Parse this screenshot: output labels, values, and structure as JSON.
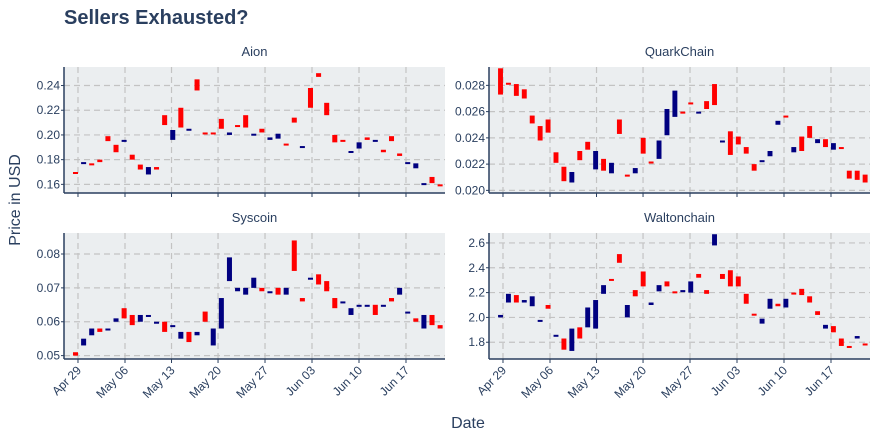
{
  "chart_data": {
    "type": "candlestick",
    "title": "Sellers Exhausted?",
    "xlabel": "Date",
    "ylabel": "Price in USD",
    "grid": true,
    "x_tick_labels": [
      "Apr 29",
      "May 06",
      "May 13",
      "May 20",
      "May 27",
      "Jun 03",
      "Jun 10",
      "Jun 17"
    ],
    "colors": {
      "increasing": "#000080",
      "decreasing": "#ff0000",
      "panel_bg": "#ebeef0",
      "grid": "#c3c3c3",
      "text": "#2a3f5f",
      "axis": "#2a3f5f"
    },
    "panels": [
      {
        "name": "Aion",
        "ylim": [
          0.153,
          0.255
        ],
        "yticks": [
          "0.16",
          "0.18",
          "0.20",
          "0.22",
          "0.24"
        ],
        "tick_values": [
          0.16,
          0.18,
          0.2,
          0.22,
          0.24
        ],
        "candles": [
          {
            "o": 0.17,
            "c": 0.169
          },
          {
            "o": 0.177,
            "c": 0.178
          },
          {
            "o": 0.177,
            "c": 0.176
          },
          {
            "o": 0.18,
            "c": 0.178
          },
          {
            "o": 0.199,
            "c": 0.195
          },
          {
            "o": 0.192,
            "c": 0.186
          },
          {
            "o": 0.195,
            "c": 0.196
          },
          {
            "o": 0.184,
            "c": 0.18
          },
          {
            "o": 0.176,
            "c": 0.172
          },
          {
            "o": 0.168,
            "c": 0.174
          },
          {
            "o": 0.174,
            "c": 0.172
          },
          {
            "o": 0.216,
            "c": 0.208
          },
          {
            "o": 0.196,
            "c": 0.204
          },
          {
            "o": 0.222,
            "c": 0.206
          },
          {
            "o": 0.204,
            "c": 0.205
          },
          {
            "o": 0.245,
            "c": 0.236
          },
          {
            "o": 0.202,
            "c": 0.201
          },
          {
            "o": 0.202,
            "c": 0.201
          },
          {
            "o": 0.213,
            "c": 0.205
          },
          {
            "o": 0.2,
            "c": 0.202
          },
          {
            "o": 0.208,
            "c": 0.207
          },
          {
            "o": 0.216,
            "c": 0.206
          },
          {
            "o": 0.2,
            "c": 0.201
          },
          {
            "o": 0.205,
            "c": 0.202
          },
          {
            "o": 0.196,
            "c": 0.198
          },
          {
            "o": 0.197,
            "c": 0.201
          },
          {
            "o": 0.193,
            "c": 0.192
          },
          {
            "o": 0.214,
            "c": 0.21
          },
          {
            "o": 0.19,
            "c": 0.191
          },
          {
            "o": 0.238,
            "c": 0.222
          },
          {
            "o": 0.25,
            "c": 0.247
          },
          {
            "o": 0.226,
            "c": 0.216
          },
          {
            "o": 0.2,
            "c": 0.194
          },
          {
            "o": 0.196,
            "c": 0.195
          },
          {
            "o": 0.186,
            "c": 0.187
          },
          {
            "o": 0.189,
            "c": 0.194
          },
          {
            "o": 0.198,
            "c": 0.196
          },
          {
            "o": 0.196,
            "c": 0.196
          },
          {
            "o": 0.188,
            "c": 0.186
          },
          {
            "o": 0.199,
            "c": 0.195
          },
          {
            "o": 0.185,
            "c": 0.183
          },
          {
            "o": 0.177,
            "c": 0.178
          },
          {
            "o": 0.173,
            "c": 0.177
          },
          {
            "o": 0.16,
            "c": 0.161
          },
          {
            "o": 0.166,
            "c": 0.161
          },
          {
            "o": 0.16,
            "c": 0.159
          }
        ]
      },
      {
        "name": "QuarkChain",
        "ylim": [
          0.0198,
          0.0294
        ],
        "yticks": [
          "0.020",
          "0.022",
          "0.024",
          "0.026",
          "0.028"
        ],
        "tick_values": [
          0.02,
          0.022,
          0.024,
          0.026,
          0.028
        ],
        "candles": [
          {
            "o": 0.0293,
            "c": 0.0273
          },
          {
            "o": 0.0282,
            "c": 0.0281
          },
          {
            "o": 0.0281,
            "c": 0.0272
          },
          {
            "o": 0.0277,
            "c": 0.027
          },
          {
            "o": 0.0257,
            "c": 0.0251
          },
          {
            "o": 0.0249,
            "c": 0.0238
          },
          {
            "o": 0.0254,
            "c": 0.0244
          },
          {
            "o": 0.0229,
            "c": 0.0221
          },
          {
            "o": 0.0218,
            "c": 0.0207
          },
          {
            "o": 0.0206,
            "c": 0.0214
          },
          {
            "o": 0.023,
            "c": 0.0223
          },
          {
            "o": 0.0237,
            "c": 0.0231
          },
          {
            "o": 0.0216,
            "c": 0.023
          },
          {
            "o": 0.0224,
            "c": 0.0215
          },
          {
            "o": 0.0213,
            "c": 0.0221
          },
          {
            "o": 0.0254,
            "c": 0.0243
          },
          {
            "o": 0.0212,
            "c": 0.0211
          },
          {
            "o": 0.0213,
            "c": 0.0217
          },
          {
            "o": 0.024,
            "c": 0.0228
          },
          {
            "o": 0.0222,
            "c": 0.0221
          },
          {
            "o": 0.0224,
            "c": 0.0238
          },
          {
            "o": 0.0242,
            "c": 0.0262
          },
          {
            "o": 0.0256,
            "c": 0.0276
          },
          {
            "o": 0.026,
            "c": 0.0259
          },
          {
            "o": 0.0267,
            "c": 0.0266
          },
          {
            "o": 0.0259,
            "c": 0.026
          },
          {
            "o": 0.0268,
            "c": 0.0262
          },
          {
            "o": 0.0281,
            "c": 0.0265
          },
          {
            "o": 0.0238,
            "c": 0.0238
          },
          {
            "o": 0.0245,
            "c": 0.0227
          },
          {
            "o": 0.0241,
            "c": 0.0235
          },
          {
            "o": 0.0233,
            "c": 0.0228
          },
          {
            "o": 0.022,
            "c": 0.0215
          },
          {
            "o": 0.0222,
            "c": 0.0223
          },
          {
            "o": 0.0226,
            "c": 0.023
          },
          {
            "o": 0.025,
            "c": 0.0253
          },
          {
            "o": 0.0257,
            "c": 0.0256
          },
          {
            "o": 0.0229,
            "c": 0.0233
          },
          {
            "o": 0.0241,
            "c": 0.023
          },
          {
            "o": 0.0249,
            "c": 0.024
          },
          {
            "o": 0.0236,
            "c": 0.0239
          },
          {
            "o": 0.0239,
            "c": 0.0233
          },
          {
            "o": 0.0231,
            "c": 0.0236
          },
          {
            "o": 0.0233,
            "c": 0.0232
          },
          {
            "o": 0.0215,
            "c": 0.0209
          },
          {
            "o": 0.0215,
            "c": 0.0208
          },
          {
            "o": 0.0212,
            "c": 0.0206
          }
        ]
      },
      {
        "name": "Syscoin",
        "ylim": [
          0.049,
          0.0862
        ],
        "yticks": [
          "0.05",
          "0.06",
          "0.07",
          "0.08"
        ],
        "tick_values": [
          0.05,
          0.06,
          0.07,
          0.08
        ],
        "candles": [
          {
            "o": 0.051,
            "c": 0.05
          },
          {
            "o": 0.053,
            "c": 0.055
          },
          {
            "o": 0.056,
            "c": 0.058
          },
          {
            "o": 0.058,
            "c": 0.057
          },
          {
            "o": 0.058,
            "c": 0.058
          },
          {
            "o": 0.06,
            "c": 0.061
          },
          {
            "o": 0.064,
            "c": 0.061
          },
          {
            "o": 0.062,
            "c": 0.059
          },
          {
            "o": 0.06,
            "c": 0.062
          },
          {
            "o": 0.062,
            "c": 0.062
          },
          {
            "o": 0.06,
            "c": 0.06
          },
          {
            "o": 0.06,
            "c": 0.057
          },
          {
            "o": 0.059,
            "c": 0.059
          },
          {
            "o": 0.055,
            "c": 0.057
          },
          {
            "o": 0.057,
            "c": 0.054
          },
          {
            "o": 0.056,
            "c": 0.057
          },
          {
            "o": 0.063,
            "c": 0.06
          },
          {
            "o": 0.053,
            "c": 0.058
          },
          {
            "o": 0.058,
            "c": 0.067
          },
          {
            "o": 0.072,
            "c": 0.079
          },
          {
            "o": 0.069,
            "c": 0.07
          },
          {
            "o": 0.068,
            "c": 0.07
          },
          {
            "o": 0.07,
            "c": 0.073
          },
          {
            "o": 0.07,
            "c": 0.069
          },
          {
            "o": 0.069,
            "c": 0.069
          },
          {
            "o": 0.07,
            "c": 0.068
          },
          {
            "o": 0.068,
            "c": 0.07
          },
          {
            "o": 0.084,
            "c": 0.075
          },
          {
            "o": 0.067,
            "c": 0.066
          },
          {
            "o": 0.073,
            "c": 0.073
          },
          {
            "o": 0.074,
            "c": 0.071
          },
          {
            "o": 0.072,
            "c": 0.069
          },
          {
            "o": 0.067,
            "c": 0.064
          },
          {
            "o": 0.066,
            "c": 0.066
          },
          {
            "o": 0.062,
            "c": 0.064
          },
          {
            "o": 0.065,
            "c": 0.065
          },
          {
            "o": 0.065,
            "c": 0.065
          },
          {
            "o": 0.065,
            "c": 0.062
          },
          {
            "o": 0.065,
            "c": 0.065
          },
          {
            "o": 0.067,
            "c": 0.066
          },
          {
            "o": 0.068,
            "c": 0.07
          },
          {
            "o": 0.063,
            "c": 0.063
          },
          {
            "o": 0.061,
            "c": 0.06
          },
          {
            "o": 0.058,
            "c": 0.062
          },
          {
            "o": 0.062,
            "c": 0.059
          },
          {
            "o": 0.059,
            "c": 0.058
          }
        ]
      },
      {
        "name": "Waltonchain",
        "ylim": [
          1.665,
          2.68
        ],
        "yticks": [
          "1.8",
          "2.0",
          "2.2",
          "2.4",
          "2.6"
        ],
        "tick_values": [
          1.8,
          2.0,
          2.2,
          2.4,
          2.6
        ],
        "candles": [
          {
            "o": 2.0,
            "c": 2.02
          },
          {
            "o": 2.12,
            "c": 2.19
          },
          {
            "o": 2.18,
            "c": 2.12
          },
          {
            "o": 2.12,
            "c": 2.14
          },
          {
            "o": 2.09,
            "c": 2.17
          },
          {
            "o": 1.97,
            "c": 1.98
          },
          {
            "o": 2.1,
            "c": 2.07
          },
          {
            "o": 1.86,
            "c": 1.86
          },
          {
            "o": 1.83,
            "c": 1.74
          },
          {
            "o": 1.73,
            "c": 1.91
          },
          {
            "o": 1.92,
            "c": 1.83
          },
          {
            "o": 1.92,
            "c": 2.08
          },
          {
            "o": 1.91,
            "c": 2.14
          },
          {
            "o": 2.19,
            "c": 2.26
          },
          {
            "o": 2.31,
            "c": 2.3
          },
          {
            "o": 2.51,
            "c": 2.44
          },
          {
            "o": 2.0,
            "c": 2.1
          },
          {
            "o": 2.22,
            "c": 2.17
          },
          {
            "o": 2.37,
            "c": 2.25
          },
          {
            "o": 2.1,
            "c": 2.12
          },
          {
            "o": 2.21,
            "c": 2.26
          },
          {
            "o": 2.29,
            "c": 2.25
          },
          {
            "o": 2.21,
            "c": 2.2
          },
          {
            "o": 2.21,
            "c": 2.22
          },
          {
            "o": 2.2,
            "c": 2.29
          },
          {
            "o": 2.35,
            "c": 2.32
          },
          {
            "o": 2.22,
            "c": 2.19
          },
          {
            "o": 2.58,
            "c": 2.67
          },
          {
            "o": 2.35,
            "c": 2.31
          },
          {
            "o": 2.38,
            "c": 2.25
          },
          {
            "o": 2.33,
            "c": 2.25
          },
          {
            "o": 2.19,
            "c": 2.11
          },
          {
            "o": 2.03,
            "c": 2.02
          },
          {
            "o": 1.95,
            "c": 1.99
          },
          {
            "o": 2.07,
            "c": 2.15
          },
          {
            "o": 2.11,
            "c": 2.09
          },
          {
            "o": 2.08,
            "c": 2.15
          },
          {
            "o": 2.2,
            "c": 2.19
          },
          {
            "o": 2.23,
            "c": 2.18
          },
          {
            "o": 2.17,
            "c": 2.12
          },
          {
            "o": 2.05,
            "c": 2.02
          },
          {
            "o": 1.91,
            "c": 1.94
          },
          {
            "o": 1.93,
            "c": 1.88
          },
          {
            "o": 1.83,
            "c": 1.77
          },
          {
            "o": 1.77,
            "c": 1.76
          },
          {
            "o": 1.83,
            "c": 1.85
          },
          {
            "o": 1.79,
            "c": 1.78
          }
        ]
      }
    ]
  }
}
